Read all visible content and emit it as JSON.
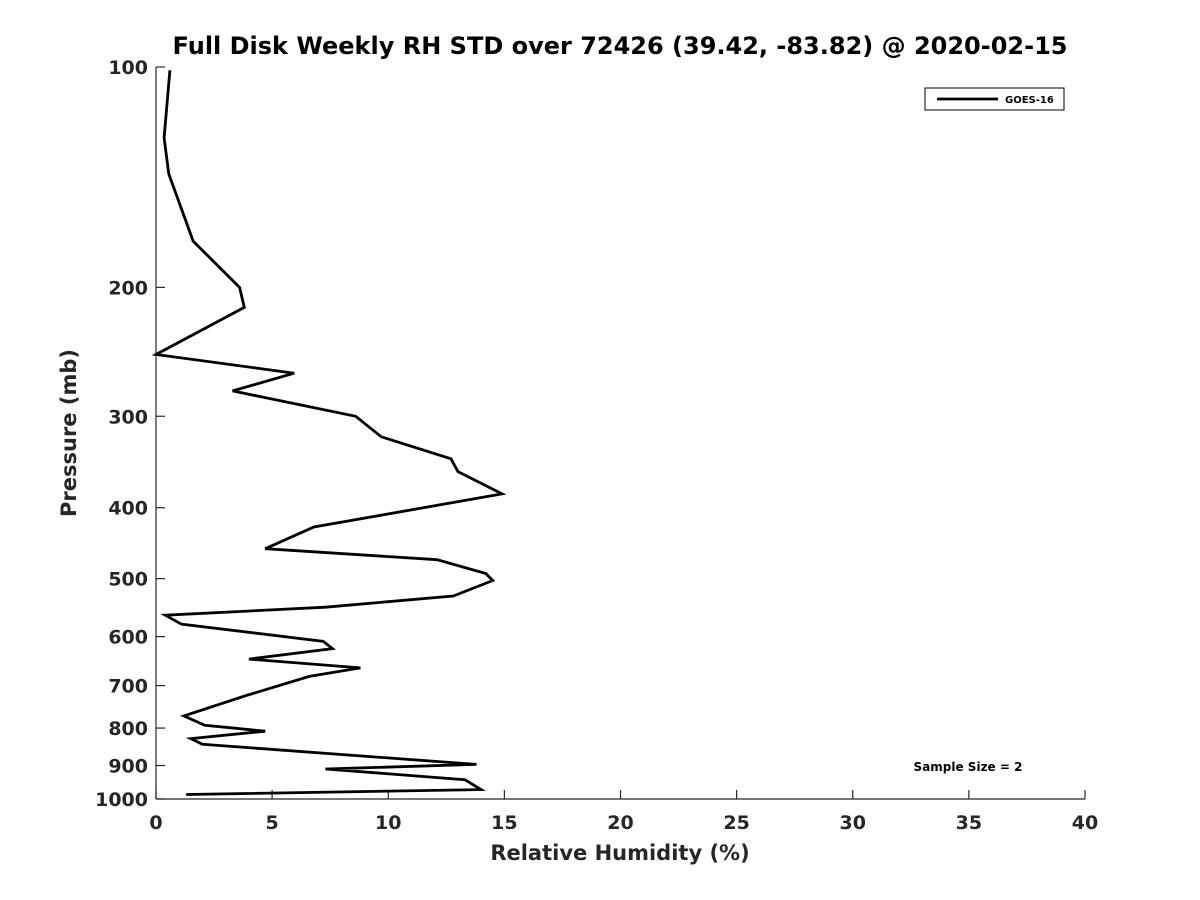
{
  "chart_data": {
    "type": "line",
    "title": "Full Disk Weekly RH STD over 72426 (39.42, -83.82) @ 2020-02-15",
    "xlabel": "Relative Humidity (%)",
    "ylabel": "Pressure (mb)",
    "xlim": [
      0,
      40
    ],
    "ylim": [
      100,
      1000
    ],
    "yscale": "log",
    "y_reversed": true,
    "xticks": [
      0,
      5,
      10,
      15,
      20,
      25,
      30,
      35,
      40
    ],
    "xtick_labels": [
      "0",
      "5",
      "10",
      "15",
      "20",
      "25",
      "30",
      "35",
      "40"
    ],
    "yticks": [
      100,
      200,
      300,
      400,
      500,
      600,
      700,
      800,
      900,
      1000
    ],
    "ytick_labels": [
      "100",
      "200",
      "300",
      "400",
      "500",
      "600",
      "700",
      "800",
      "900",
      "1000"
    ],
    "grid": false,
    "legend_position": "top-right",
    "annotation": "Sample Size = 2",
    "line_color": "#000000",
    "series": [
      {
        "name": "GOES-16",
        "x": [
          0.6,
          0.35,
          0.55,
          1.6,
          3.6,
          3.8,
          0.0,
          5.95,
          3.3,
          8.6,
          9.7,
          12.7,
          13.0,
          14.9,
          6.8,
          4.7,
          12.1,
          14.2,
          14.5,
          12.8,
          7.3,
          0.4,
          1.1,
          7.2,
          7.6,
          4.0,
          8.8,
          6.6,
          3.9,
          1.2,
          2.1,
          4.7,
          1.5,
          2.0,
          13.8,
          7.3,
          13.3,
          14.0,
          1.3
        ],
        "y": [
          101,
          125,
          140,
          173,
          200,
          213,
          247,
          262,
          277,
          300,
          320,
          343,
          357,
          383,
          425,
          455,
          471,
          492,
          503,
          528,
          547,
          561,
          577,
          609,
          623,
          644,
          662,
          680,
          722,
          770,
          793,
          808,
          827,
          842,
          897,
          910,
          941,
          971,
          986
        ]
      }
    ]
  }
}
